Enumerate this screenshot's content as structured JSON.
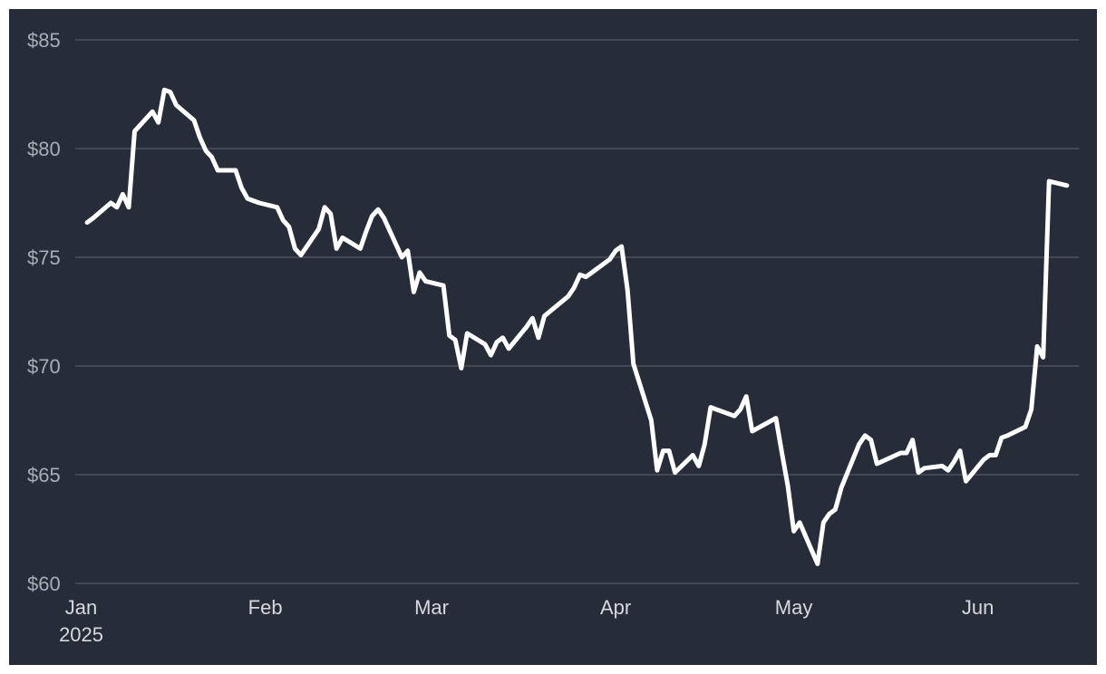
{
  "chart_data": {
    "type": "line",
    "title": "",
    "xlabel": "",
    "ylabel": "",
    "ylim": [
      60,
      85
    ],
    "xlim": [
      "2024-12-31",
      "2025-06-18"
    ],
    "grid": "horizontal",
    "y_ticks": [
      {
        "value": 85,
        "label": "$85"
      },
      {
        "value": 80,
        "label": "$80"
      },
      {
        "value": 75,
        "label": "$75"
      },
      {
        "value": 70,
        "label": "$70"
      },
      {
        "value": 65,
        "label": "$65"
      },
      {
        "value": 60,
        "label": "$60"
      }
    ],
    "x_ticks": [
      {
        "date": "2025-01-01",
        "label": "Jan",
        "sublabel": "2025"
      },
      {
        "date": "2025-02-01",
        "label": "Feb",
        "sublabel": ""
      },
      {
        "date": "2025-03-01",
        "label": "Mar",
        "sublabel": ""
      },
      {
        "date": "2025-04-01",
        "label": "Apr",
        "sublabel": ""
      },
      {
        "date": "2025-05-01",
        "label": "May",
        "sublabel": ""
      },
      {
        "date": "2025-06-01",
        "label": "Jun",
        "sublabel": ""
      }
    ],
    "series": [
      {
        "color": "#ffffff",
        "points": [
          [
            "2025-01-02",
            76.6
          ],
          [
            "2025-01-03",
            76.8
          ],
          [
            "2025-01-06",
            77.5
          ],
          [
            "2025-01-07",
            77.3
          ],
          [
            "2025-01-08",
            77.9
          ],
          [
            "2025-01-09",
            77.3
          ],
          [
            "2025-01-10",
            80.8
          ],
          [
            "2025-01-13",
            81.7
          ],
          [
            "2025-01-14",
            81.2
          ],
          [
            "2025-01-15",
            82.7
          ],
          [
            "2025-01-16",
            82.6
          ],
          [
            "2025-01-17",
            82.0
          ],
          [
            "2025-01-20",
            81.3
          ],
          [
            "2025-01-21",
            80.5
          ],
          [
            "2025-01-22",
            79.9
          ],
          [
            "2025-01-23",
            79.6
          ],
          [
            "2025-01-24",
            79.0
          ],
          [
            "2025-01-27",
            79.0
          ],
          [
            "2025-01-28",
            78.2
          ],
          [
            "2025-01-29",
            77.7
          ],
          [
            "2025-01-30",
            77.6
          ],
          [
            "2025-01-31",
            77.5
          ],
          [
            "2025-02-03",
            77.3
          ],
          [
            "2025-02-04",
            76.7
          ],
          [
            "2025-02-05",
            76.4
          ],
          [
            "2025-02-06",
            75.4
          ],
          [
            "2025-02-07",
            75.1
          ],
          [
            "2025-02-10",
            76.3
          ],
          [
            "2025-02-11",
            77.3
          ],
          [
            "2025-02-12",
            77.0
          ],
          [
            "2025-02-13",
            75.4
          ],
          [
            "2025-02-14",
            75.9
          ],
          [
            "2025-02-17",
            75.4
          ],
          [
            "2025-02-18",
            76.2
          ],
          [
            "2025-02-19",
            76.9
          ],
          [
            "2025-02-20",
            77.2
          ],
          [
            "2025-02-21",
            76.8
          ],
          [
            "2025-02-24",
            75.0
          ],
          [
            "2025-02-25",
            75.3
          ],
          [
            "2025-02-26",
            73.4
          ],
          [
            "2025-02-27",
            74.3
          ],
          [
            "2025-02-28",
            73.9
          ],
          [
            "2025-03-03",
            73.7
          ],
          [
            "2025-03-04",
            71.4
          ],
          [
            "2025-03-05",
            71.2
          ],
          [
            "2025-03-06",
            69.9
          ],
          [
            "2025-03-07",
            71.5
          ],
          [
            "2025-03-10",
            71.0
          ],
          [
            "2025-03-11",
            70.5
          ],
          [
            "2025-03-12",
            71.1
          ],
          [
            "2025-03-13",
            71.3
          ],
          [
            "2025-03-14",
            70.8
          ],
          [
            "2025-03-17",
            71.8
          ],
          [
            "2025-03-18",
            72.2
          ],
          [
            "2025-03-19",
            71.3
          ],
          [
            "2025-03-20",
            72.3
          ],
          [
            "2025-03-24",
            73.2
          ],
          [
            "2025-03-25",
            73.6
          ],
          [
            "2025-03-26",
            74.2
          ],
          [
            "2025-03-27",
            74.1
          ],
          [
            "2025-03-28",
            74.3
          ],
          [
            "2025-03-31",
            74.9
          ],
          [
            "2025-04-01",
            75.3
          ],
          [
            "2025-04-02",
            75.5
          ],
          [
            "2025-04-03",
            73.5
          ],
          [
            "2025-04-04",
            70.1
          ],
          [
            "2025-04-07",
            67.5
          ],
          [
            "2025-04-08",
            65.2
          ],
          [
            "2025-04-09",
            66.1
          ],
          [
            "2025-04-10",
            66.1
          ],
          [
            "2025-04-11",
            65.1
          ],
          [
            "2025-04-14",
            65.9
          ],
          [
            "2025-04-15",
            65.4
          ],
          [
            "2025-04-16",
            66.4
          ],
          [
            "2025-04-17",
            68.1
          ],
          [
            "2025-04-21",
            67.7
          ],
          [
            "2025-04-22",
            68.0
          ],
          [
            "2025-04-23",
            68.6
          ],
          [
            "2025-04-24",
            67.0
          ],
          [
            "2025-04-28",
            67.6
          ],
          [
            "2025-04-29",
            66.0
          ],
          [
            "2025-04-30",
            64.5
          ],
          [
            "2025-05-01",
            62.4
          ],
          [
            "2025-05-02",
            62.8
          ],
          [
            "2025-05-05",
            60.9
          ],
          [
            "2025-05-06",
            62.8
          ],
          [
            "2025-05-07",
            63.2
          ],
          [
            "2025-05-08",
            63.4
          ],
          [
            "2025-05-09",
            64.4
          ],
          [
            "2025-05-12",
            66.4
          ],
          [
            "2025-05-13",
            66.8
          ],
          [
            "2025-05-14",
            66.6
          ],
          [
            "2025-05-15",
            65.5
          ],
          [
            "2025-05-19",
            66.0
          ],
          [
            "2025-05-20",
            66.0
          ],
          [
            "2025-05-21",
            66.6
          ],
          [
            "2025-05-22",
            65.1
          ],
          [
            "2025-05-23",
            65.3
          ],
          [
            "2025-05-26",
            65.4
          ],
          [
            "2025-05-27",
            65.2
          ],
          [
            "2025-05-28",
            65.6
          ],
          [
            "2025-05-29",
            66.1
          ],
          [
            "2025-05-30",
            64.7
          ],
          [
            "2025-06-02",
            65.7
          ],
          [
            "2025-06-03",
            65.9
          ],
          [
            "2025-06-04",
            65.9
          ],
          [
            "2025-06-05",
            66.7
          ],
          [
            "2025-06-06",
            66.8
          ],
          [
            "2025-06-09",
            67.2
          ],
          [
            "2025-06-10",
            68.0
          ],
          [
            "2025-06-11",
            70.9
          ],
          [
            "2025-06-12",
            70.4
          ],
          [
            "2025-06-13",
            78.5
          ],
          [
            "2025-06-16",
            78.3
          ]
        ]
      }
    ]
  }
}
